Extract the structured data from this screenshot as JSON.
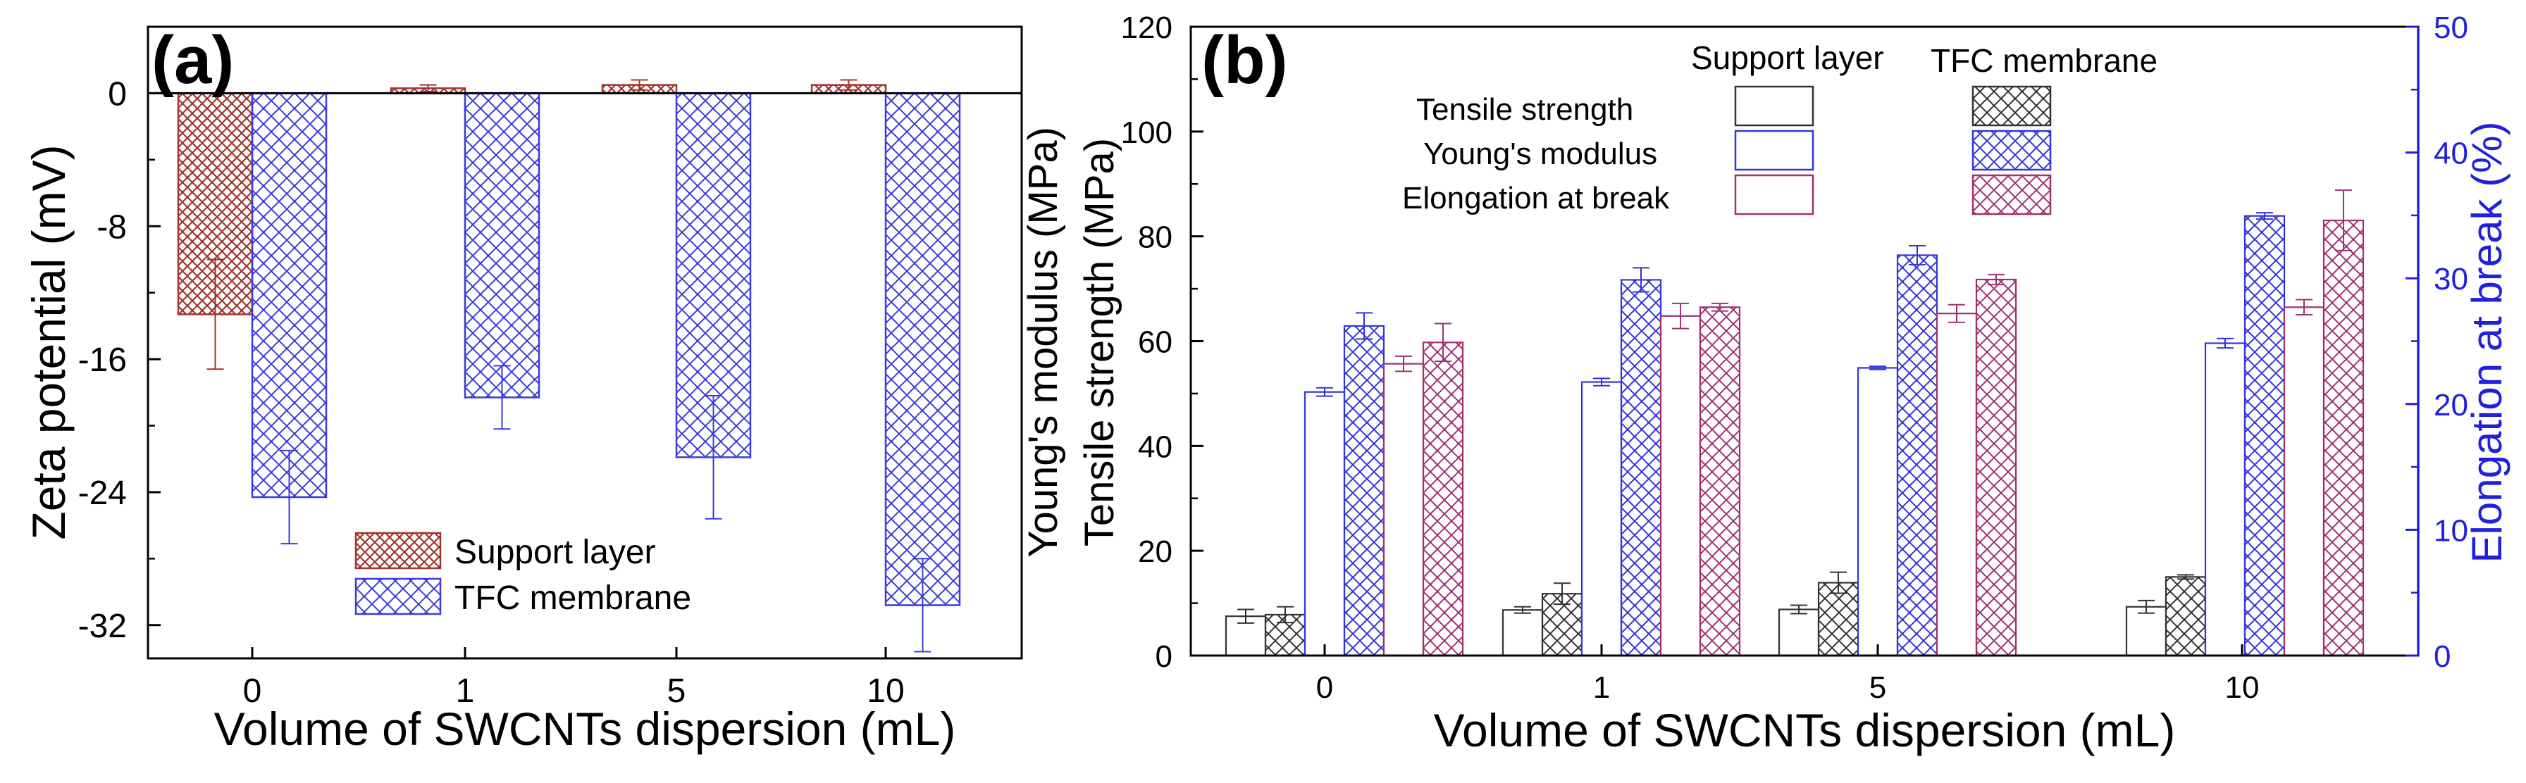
{
  "chart_data": [
    {
      "type": "bar",
      "panel_label": "(a)",
      "categories": [
        "0",
        "1",
        "5",
        "10"
      ],
      "xlabel": "Volume of SWCNTs dispersion (mL)",
      "ylabel": "Zeta potential (mV)",
      "ylim": [
        -34,
        4
      ],
      "yticks": [
        "0",
        "-8",
        "-16",
        "-24",
        "-32"
      ],
      "ytick_values": [
        0,
        -8,
        -16,
        -24,
        -32
      ],
      "legend_position": "bottom-center",
      "series": [
        {
          "name": "Support layer",
          "color": "#a0342c",
          "hatch": "crosshatch-fine",
          "values": [
            -13.3,
            0.3,
            0.5,
            0.5
          ],
          "errors": [
            3.3,
            0.2,
            0.3,
            0.3
          ]
        },
        {
          "name": "TFC membrane",
          "color": "#3a3ae0",
          "hatch": "crosshatch",
          "values": [
            -24.3,
            -18.3,
            -21.9,
            -30.8
          ],
          "errors": [
            2.8,
            1.9,
            3.7,
            2.8
          ]
        }
      ]
    },
    {
      "type": "bar",
      "panel_label": "(b)",
      "categories": [
        "0",
        "1",
        "5",
        "10"
      ],
      "xlabel": "Volume of SWCNTs dispersion (mL)",
      "ylabel_left_top": "Young's modulus (MPa)",
      "ylabel_left_bottom": "Tensile strength (MPa)",
      "ylabel_right": "Elongation at break (%)",
      "ylim_left": [
        0,
        120
      ],
      "ylim_right": [
        0,
        50
      ],
      "yticks_left": [
        "0",
        "20",
        "40",
        "60",
        "80",
        "100",
        "120"
      ],
      "ytick_values_left": [
        0,
        20,
        40,
        60,
        80,
        100,
        120
      ],
      "yticks_right": [
        "0",
        "10",
        "20",
        "30",
        "40",
        "50"
      ],
      "ytick_values_right": [
        0,
        10,
        20,
        30,
        40,
        50
      ],
      "right_axis_color": "#2020dd",
      "legend_position": "top-center",
      "legend_columns": [
        "Support layer",
        "TFC membrane"
      ],
      "legend_rows": [
        "Tensile strength",
        "Young's modulus",
        "Elongation at break"
      ],
      "series": [
        {
          "name": "Tensile strength - Support layer",
          "color": "#333333",
          "fill": "open",
          "axis": "left",
          "values": [
            7.5,
            8.7,
            8.8,
            9.3
          ],
          "errors": [
            1.3,
            0.6,
            0.8,
            1.2
          ]
        },
        {
          "name": "Tensile strength - TFC membrane",
          "color": "#333333",
          "fill": "hatch",
          "axis": "left",
          "values": [
            7.8,
            11.8,
            13.9,
            15.0
          ],
          "errors": [
            1.5,
            2.0,
            2.0,
            0.4
          ]
        },
        {
          "name": "Young's modulus - Support layer",
          "color": "#3333dd",
          "fill": "open",
          "axis": "left",
          "values": [
            50.3,
            52.2,
            54.9,
            59.6
          ],
          "errors": [
            0.8,
            0.7,
            0.3,
            0.9
          ]
        },
        {
          "name": "Young's modulus - TFC membrane",
          "color": "#3333dd",
          "fill": "hatch",
          "axis": "left",
          "values": [
            62.9,
            71.7,
            76.4,
            83.9
          ],
          "errors": [
            2.5,
            2.3,
            1.8,
            0.6
          ]
        },
        {
          "name": "Elongation at break - Support layer",
          "color": "#a03070",
          "fill": "open",
          "axis": "right",
          "values": [
            23.2,
            27.0,
            27.2,
            27.7
          ],
          "errors": [
            0.6,
            1.0,
            0.7,
            0.6
          ]
        },
        {
          "name": "Elongation at break - TFC membrane",
          "color": "#a03070",
          "fill": "hatch",
          "axis": "right",
          "values": [
            24.9,
            27.7,
            29.9,
            34.6
          ],
          "errors": [
            1.5,
            0.3,
            0.4,
            2.4
          ]
        }
      ]
    }
  ]
}
